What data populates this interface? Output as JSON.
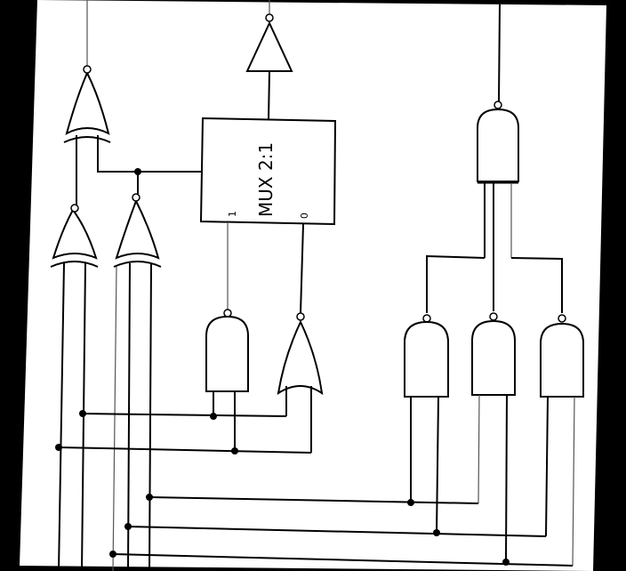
{
  "diagram": {
    "type": "logic-circuit-schematic",
    "components": [
      {
        "kind": "XOR",
        "id": "xor-top"
      },
      {
        "kind": "XOR",
        "id": "xor-left"
      },
      {
        "kind": "XOR",
        "id": "xor-right"
      },
      {
        "kind": "NOT",
        "id": "inverter"
      },
      {
        "kind": "MUX",
        "id": "mux"
      },
      {
        "kind": "NAND",
        "id": "nand-left"
      },
      {
        "kind": "NOR",
        "id": "nor"
      },
      {
        "kind": "NAND",
        "id": "nand-top-right"
      },
      {
        "kind": "NAND",
        "id": "nand-r1"
      },
      {
        "kind": "NAND",
        "id": "nand-r2"
      },
      {
        "kind": "NAND",
        "id": "nand-r3"
      }
    ],
    "mux": {
      "label": "MUX 2:1",
      "input_1": "1",
      "input_0": "0"
    },
    "colors": {
      "background": "#ffffff",
      "frame": "#000000",
      "line": "#000000"
    }
  }
}
